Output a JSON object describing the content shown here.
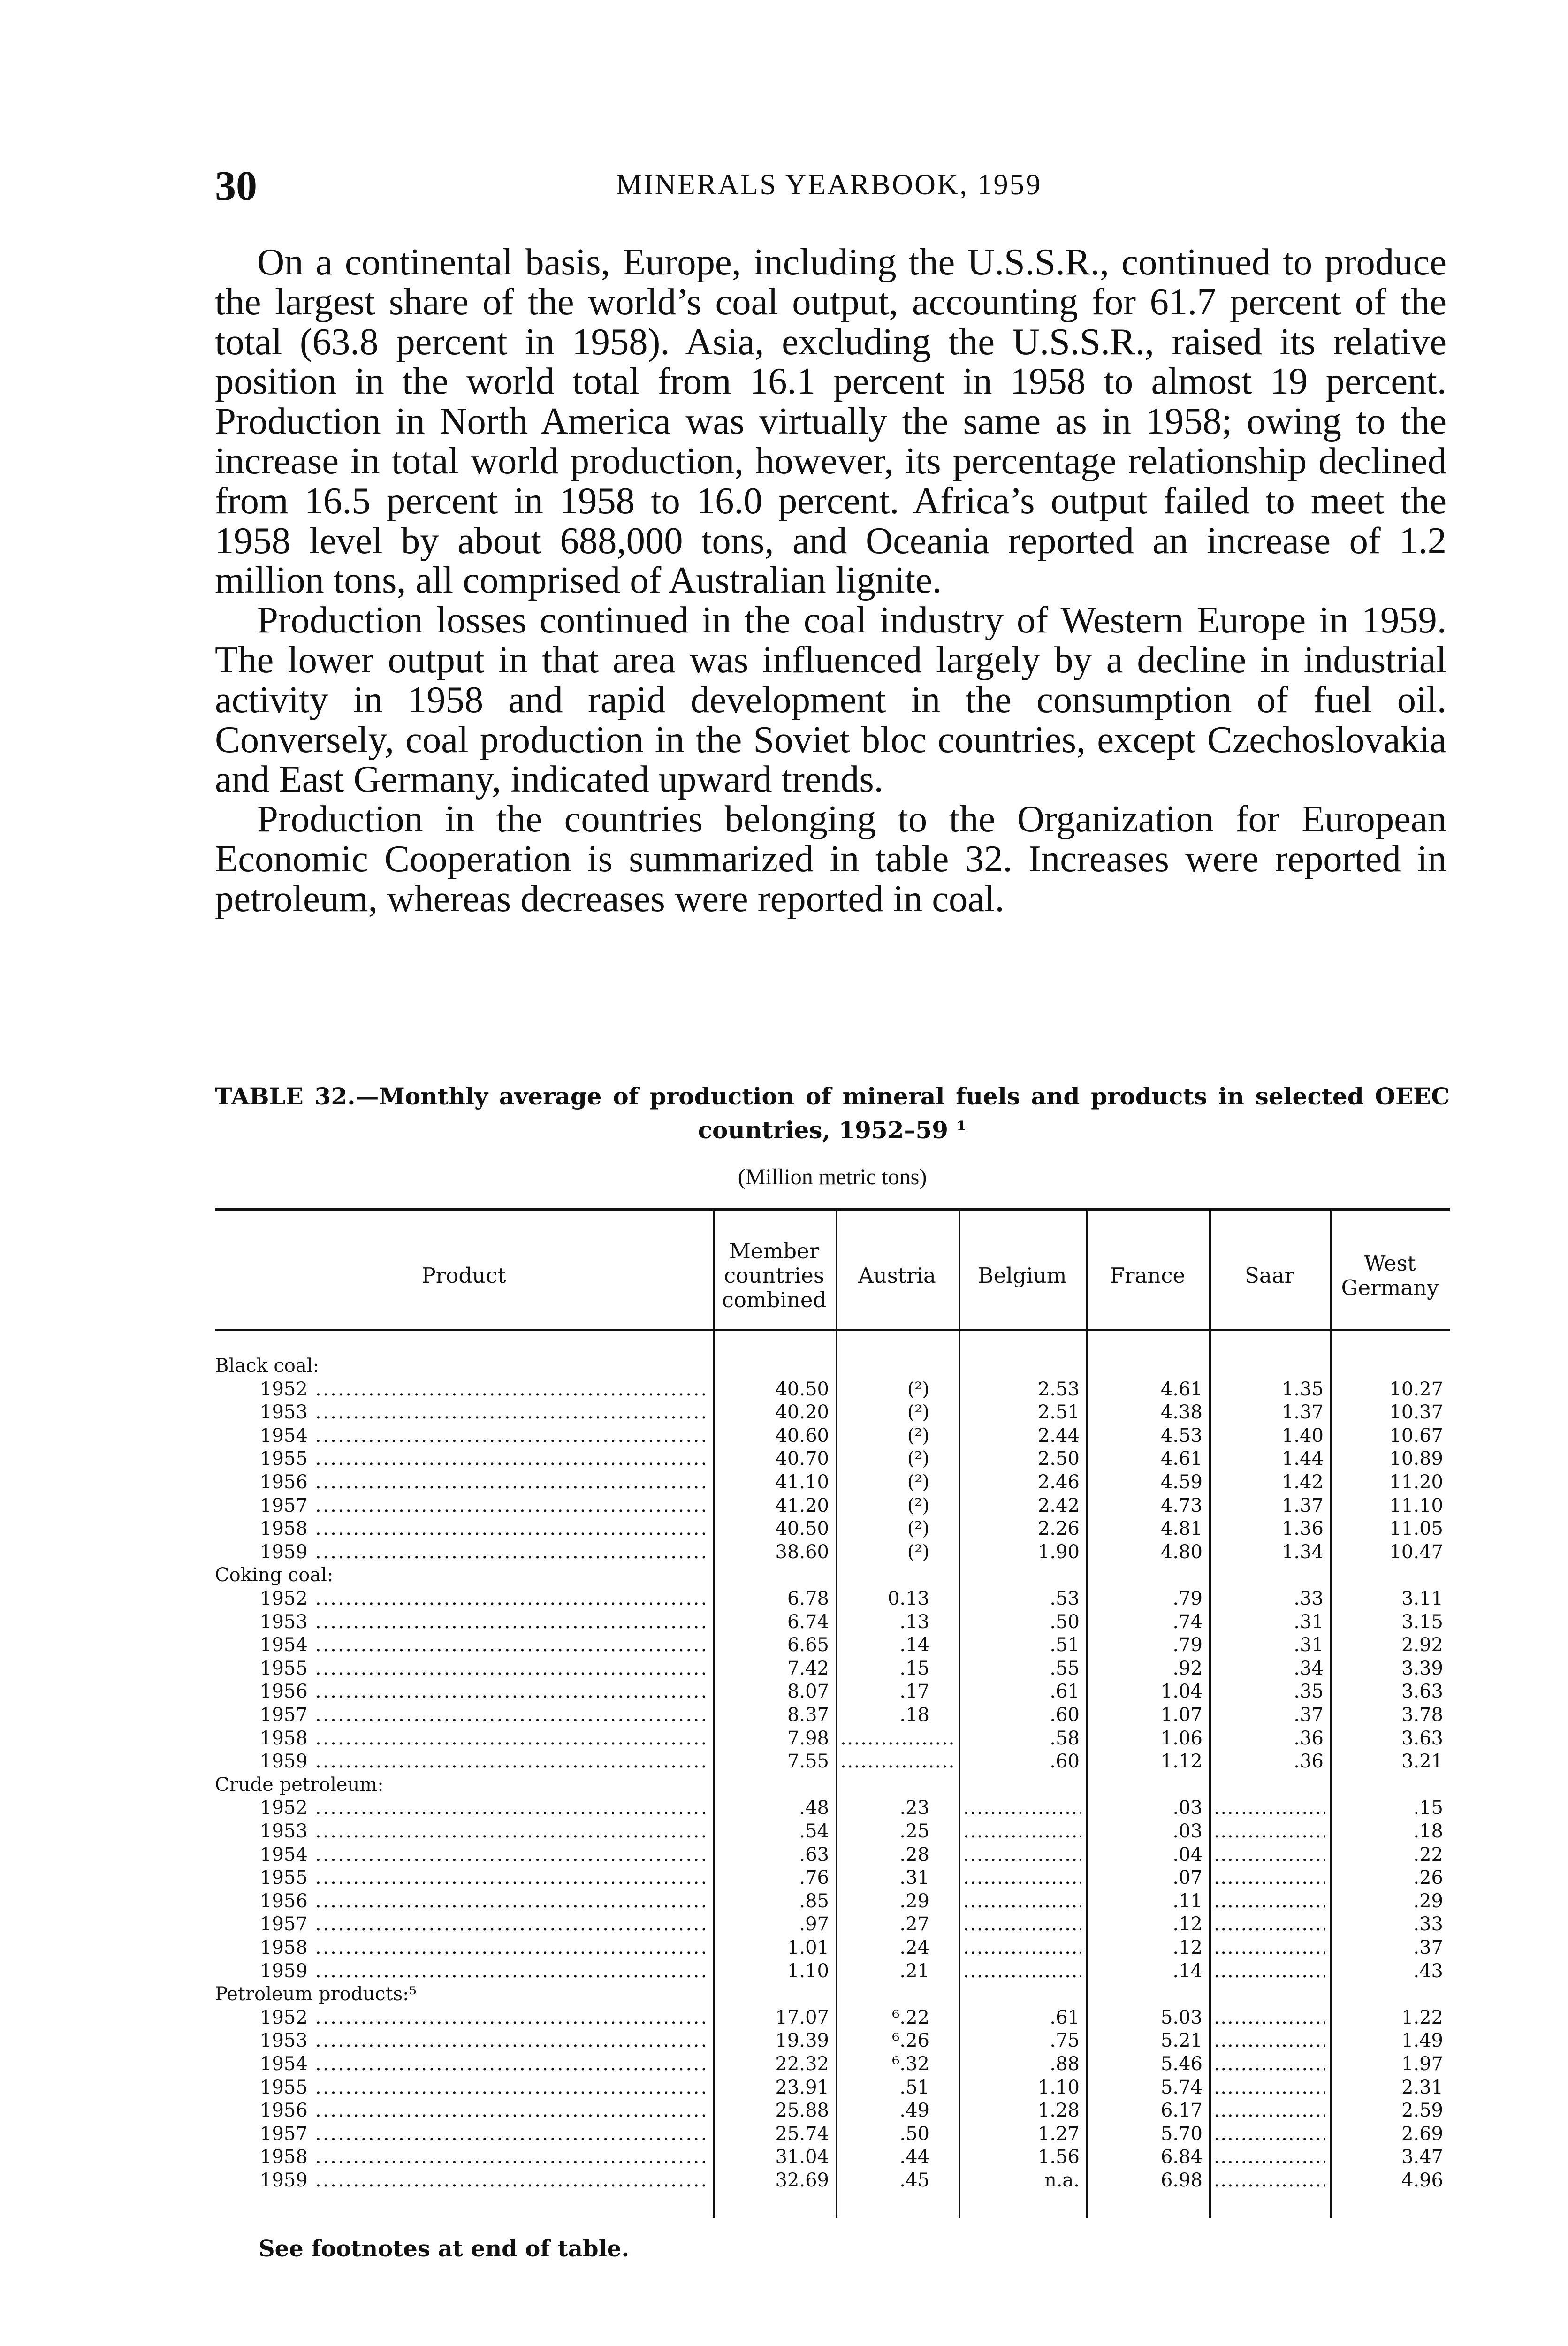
{
  "header": {
    "page_number": "30",
    "running_title": "MINERALS YEARBOOK, 1959"
  },
  "paragraphs": [
    "On a continental basis, Europe, including the U.S.S.R., continued to produce the largest share of the world’s coal output, accounting for 61.7 percent of the total (63.8 percent in 1958). Asia, excluding the U.S.S.R., raised its relative position in the world total from 16.1 percent in 1958 to almost 19 percent. Production in North America was virtually the same as in 1958; owing to the increase in total world production, however, its percentage relationship declined from 16.5 percent in 1958 to 16.0 percent. Africa’s output failed to meet the 1958 level by about 688,000 tons, and Oceania reported an increase of 1.2 million tons, all comprised of Australian lignite.",
    "Production losses continued in the coal industry of Western Europe in 1959. The lower output in that area was influenced largely by a decline in industrial activity in 1958 and rapid development in the consumption of fuel oil. Conversely, coal production in the Soviet bloc countries, except Czechoslovakia and East Germany, indicated upward trends.",
    "Production in the countries belonging to the Organization for European Economic Cooperation is summarized in table 32. Increases were reported in petroleum, whereas decreases were reported in coal."
  ],
  "table": {
    "title": "TABLE 32.—Monthly average of production of mineral fuels and products in selected OEEC countries, 1952–59 ¹",
    "units": "(Million metric tons)",
    "columns": [
      "Product",
      "Member countries combined",
      "Austria",
      "Belgium",
      "France",
      "Saar",
      "West Germany"
    ],
    "groups": [
      {
        "label": "Black coal:",
        "rows": [
          [
            "1952",
            "40.50",
            "(²)",
            "2.53",
            "4.61",
            "1.35",
            "10.27"
          ],
          [
            "1953",
            "40.20",
            "(²)",
            "2.51",
            "4.38",
            "1.37",
            "10.37"
          ],
          [
            "1954",
            "40.60",
            "(²)",
            "2.44",
            "4.53",
            "1.40",
            "10.67"
          ],
          [
            "1955",
            "40.70",
            "(²)",
            "2.50",
            "4.61",
            "1.44",
            "10.89"
          ],
          [
            "1956",
            "41.10",
            "(²)",
            "2.46",
            "4.59",
            "1.42",
            "11.20"
          ],
          [
            "1957",
            "41.20",
            "(²)",
            "2.42",
            "4.73",
            "1.37",
            "11.10"
          ],
          [
            "1958",
            "40.50",
            "(²)",
            "2.26",
            "4.81",
            "1.36",
            "11.05"
          ],
          [
            "1959",
            "38.60",
            "(²)",
            "1.90",
            "4.80",
            "1.34",
            "10.47"
          ]
        ]
      },
      {
        "label": "Coking coal:",
        "rows": [
          [
            "1952",
            "6.78",
            "0.13",
            ".53",
            ".79",
            ".33",
            "3.11"
          ],
          [
            "1953",
            "6.74",
            ".13",
            ".50",
            ".74",
            ".31",
            "3.15"
          ],
          [
            "1954",
            "6.65",
            ".14",
            ".51",
            ".79",
            ".31",
            "2.92"
          ],
          [
            "1955",
            "7.42",
            ".15",
            ".55",
            ".92",
            ".34",
            "3.39"
          ],
          [
            "1956",
            "8.07",
            ".17",
            ".61",
            "1.04",
            ".35",
            "3.63"
          ],
          [
            "1957",
            "8.37",
            ".18",
            ".60",
            "1.07",
            ".37",
            "3.78"
          ],
          [
            "1958",
            "7.98",
            "",
            ".58",
            "1.06",
            ".36",
            "3.63"
          ],
          [
            "1959",
            "7.55",
            "",
            ".60",
            "1.12",
            ".36",
            "3.21"
          ]
        ]
      },
      {
        "label": "Crude petroleum:",
        "rows": [
          [
            "1952",
            ".48",
            ".23",
            "",
            ".03",
            "",
            ".15"
          ],
          [
            "1953",
            ".54",
            ".25",
            "",
            ".03",
            "",
            ".18"
          ],
          [
            "1954",
            ".63",
            ".28",
            "",
            ".04",
            "",
            ".22"
          ],
          [
            "1955",
            ".76",
            ".31",
            "",
            ".07",
            "",
            ".26"
          ],
          [
            "1956",
            ".85",
            ".29",
            "",
            ".11",
            "",
            ".29"
          ],
          [
            "1957",
            ".97",
            ".27",
            "",
            ".12",
            "",
            ".33"
          ],
          [
            "1958",
            "1.01",
            ".24",
            "",
            ".12",
            "",
            ".37"
          ],
          [
            "1959",
            "1.10",
            ".21",
            "",
            ".14",
            "",
            ".43"
          ]
        ]
      },
      {
        "label": "Petroleum products:⁵",
        "rows": [
          [
            "1952",
            "17.07",
            "⁶.22",
            ".61",
            "5.03",
            "",
            "1.22"
          ],
          [
            "1953",
            "19.39",
            "⁶.26",
            ".75",
            "5.21",
            "",
            "1.49"
          ],
          [
            "1954",
            "22.32",
            "⁶.32",
            ".88",
            "5.46",
            "",
            "1.97"
          ],
          [
            "1955",
            "23.91",
            ".51",
            "1.10",
            "5.74",
            "",
            "2.31"
          ],
          [
            "1956",
            "25.88",
            ".49",
            "1.28",
            "6.17",
            "",
            "2.59"
          ],
          [
            "1957",
            "25.74",
            ".50",
            "1.27",
            "5.70",
            "",
            "2.69"
          ],
          [
            "1958",
            "31.04",
            ".44",
            "1.56",
            "6.84",
            "",
            "3.47"
          ],
          [
            "1959",
            "32.69",
            ".45",
            "n.a.",
            "6.98",
            "",
            "4.96"
          ]
        ]
      }
    ],
    "footnote": "See footnotes at end of table."
  }
}
